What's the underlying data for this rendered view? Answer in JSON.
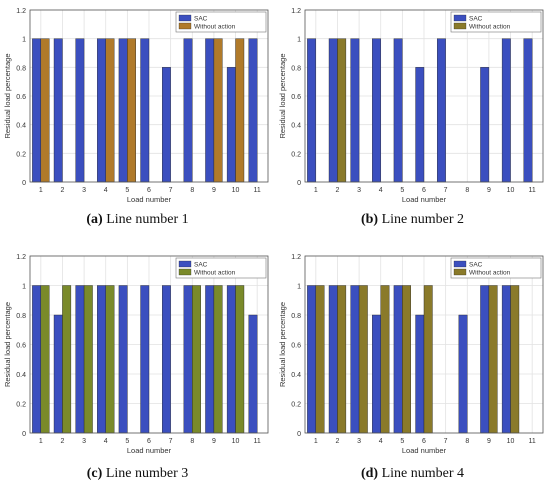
{
  "chart_data": [
    {
      "type": "bar",
      "caption_letter": "(a)",
      "caption_text": "Line number 1",
      "xlabel": "Load number",
      "ylabel": "Residual load percentage",
      "ylim": [
        0,
        1.2
      ],
      "yticks": [
        "0",
        "0.2",
        "0.4",
        "0.6",
        "0.8",
        "1",
        "1.2"
      ],
      "categories": [
        "1",
        "2",
        "3",
        "4",
        "5",
        "6",
        "7",
        "8",
        "9",
        "10",
        "11"
      ],
      "grid": true,
      "legend_position": "top-right",
      "series": [
        {
          "name": "SAC",
          "color": "#3b4fbf",
          "values": [
            1,
            1,
            1,
            1,
            1,
            1,
            0.8,
            1,
            1,
            0.8,
            1
          ]
        },
        {
          "name": "Without action",
          "color": "#b07a2a",
          "values": [
            1,
            0,
            0,
            1,
            1,
            0,
            0,
            0,
            1,
            1,
            0
          ]
        }
      ]
    },
    {
      "type": "bar",
      "caption_letter": "(b)",
      "caption_text": "Line number 2",
      "xlabel": "Load number",
      "ylabel": "Residual load percentage",
      "ylim": [
        0,
        1.2
      ],
      "yticks": [
        "0",
        "0.2",
        "0.4",
        "0.6",
        "0.8",
        "1",
        "1.2"
      ],
      "categories": [
        "1",
        "2",
        "3",
        "4",
        "5",
        "6",
        "7",
        "8",
        "9",
        "10",
        "11"
      ],
      "grid": true,
      "legend_position": "top-right",
      "series": [
        {
          "name": "SAC",
          "color": "#3b4fbf",
          "values": [
            1,
            1,
            1,
            1,
            1,
            0.8,
            1,
            0,
            0.8,
            1,
            1
          ]
        },
        {
          "name": "Without action",
          "color": "#8a7a2a",
          "values": [
            0,
            1,
            0,
            0,
            0,
            0,
            0,
            0,
            0,
            0,
            0
          ]
        }
      ]
    },
    {
      "type": "bar",
      "caption_letter": "(c)",
      "caption_text": "Line number 3",
      "xlabel": "Load number",
      "ylabel": "Residual load percentage",
      "ylim": [
        0,
        1.2
      ],
      "yticks": [
        "0",
        "0.2",
        "0.4",
        "0.6",
        "0.8",
        "1",
        "1.2"
      ],
      "categories": [
        "1",
        "2",
        "3",
        "4",
        "5",
        "6",
        "7",
        "8",
        "9",
        "10",
        "11"
      ],
      "grid": true,
      "legend_position": "top-right",
      "series": [
        {
          "name": "SAC",
          "color": "#3b4fbf",
          "values": [
            1,
            0.8,
            1,
            1,
            1,
            1,
            1,
            1,
            1,
            1,
            0.8
          ]
        },
        {
          "name": "Without action",
          "color": "#7a8a2a",
          "values": [
            1,
            1,
            1,
            1,
            0,
            0,
            0,
            1,
            1,
            1,
            0
          ]
        }
      ]
    },
    {
      "type": "bar",
      "caption_letter": "(d)",
      "caption_text": "Line number 4",
      "xlabel": "Load number",
      "ylabel": "Residual load percentage",
      "ylim": [
        0,
        1.2
      ],
      "yticks": [
        "0",
        "0.2",
        "0.4",
        "0.6",
        "0.8",
        "1",
        "1.2"
      ],
      "categories": [
        "1",
        "2",
        "3",
        "4",
        "5",
        "6",
        "7",
        "8",
        "9",
        "10",
        "11"
      ],
      "grid": true,
      "legend_position": "top-right",
      "series": [
        {
          "name": "SAC",
          "color": "#3b4fbf",
          "values": [
            1,
            1,
            1,
            0.8,
            1,
            0.8,
            0,
            0.8,
            1,
            1,
            0
          ]
        },
        {
          "name": "Without action",
          "color": "#8a7a2a",
          "values": [
            1,
            1,
            1,
            1,
            1,
            1,
            0,
            0,
            1,
            1,
            0
          ]
        }
      ]
    }
  ]
}
